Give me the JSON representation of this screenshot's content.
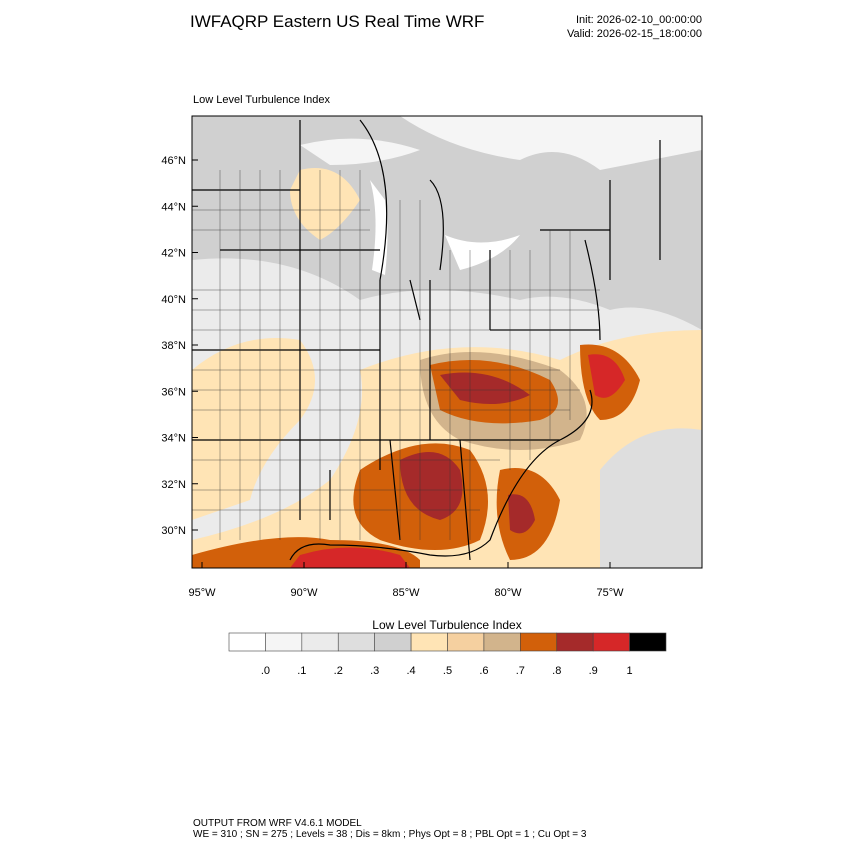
{
  "header": {
    "title": "IWFAQRP Eastern US Real Time WRF",
    "init": "Init: 2026-02-10_00:00:00",
    "valid": "Valid: 2026-02-15_18:00:00"
  },
  "map": {
    "title": "Low Level Turbulence Index",
    "lat_labels": [
      "46°N",
      "44°N",
      "42°N",
      "40°N",
      "38°N",
      "36°N",
      "34°N",
      "32°N",
      "30°N"
    ],
    "lon_labels": [
      "95°W",
      "90°W",
      "85°W",
      "80°W",
      "75°W"
    ]
  },
  "colorbar": {
    "title": "Low Level Turbulence Index",
    "colors": [
      "#ffffff",
      "#f5f5f5",
      "#ebebeb",
      "#dedede",
      "#d0d0d0",
      "#ffe4b5",
      "#f5d0a0",
      "#d2b48c",
      "#d2600a",
      "#a52a2a",
      "#d62728",
      "#000000"
    ],
    "labels": [
      ".0",
      ".1",
      ".2",
      ".3",
      ".4",
      ".5",
      ".6",
      ".7",
      ".8",
      ".9",
      "1"
    ]
  },
  "footer": {
    "line1": "OUTPUT FROM WRF V4.6.1 MODEL",
    "line2": "WE = 310 ; SN = 275 ; Levels = 38 ; Dis = 8km ; Phys Opt = 8 ; PBL Opt = 1 ; Cu Opt = 3"
  }
}
